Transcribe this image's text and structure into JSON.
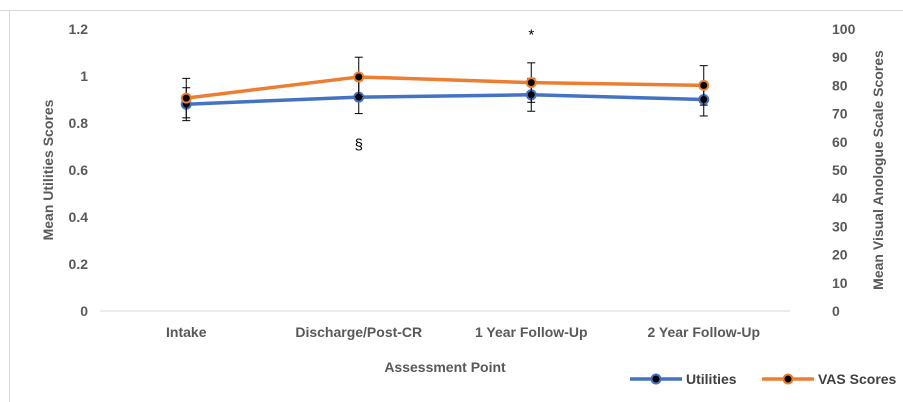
{
  "chart_data": {
    "type": "line",
    "categories": [
      "Intake",
      "Discharge/Post-CR",
      "1 Year Follow-Up",
      "2 Year Follow-Up"
    ],
    "xlabel": "Assessment Point",
    "ylabel": "Mean Utilities Scores",
    "y2label": "Mean Visual Anologue Scale  Scores",
    "ylim": [
      0,
      1.2
    ],
    "y2lim": [
      0,
      100
    ],
    "yticks": [
      "0",
      "0.2",
      "0.4",
      "0.6",
      "0.8",
      "1",
      "1.2"
    ],
    "y2ticks": [
      "0",
      "10",
      "20",
      "30",
      "40",
      "50",
      "60",
      "70",
      "80",
      "90",
      "100"
    ],
    "grid": false,
    "legend_position": "bottom-right",
    "series": [
      {
        "name": "Utilities",
        "axis": "left",
        "color": "#4472c4",
        "values": [
          0.88,
          0.91,
          0.92,
          0.9
        ],
        "error": [
          0.07,
          0.07,
          0.07,
          0.07
        ]
      },
      {
        "name": "VAS Scores",
        "axis": "right",
        "color": "#ed7d31",
        "values": [
          75.5,
          83,
          81,
          80
        ],
        "error": [
          7,
          7,
          7,
          7
        ]
      }
    ],
    "annotations": [
      {
        "text": "*",
        "category_index": 2,
        "y2": 98
      },
      {
        "text": "§",
        "category_index": 1,
        "y2": 59
      }
    ]
  }
}
